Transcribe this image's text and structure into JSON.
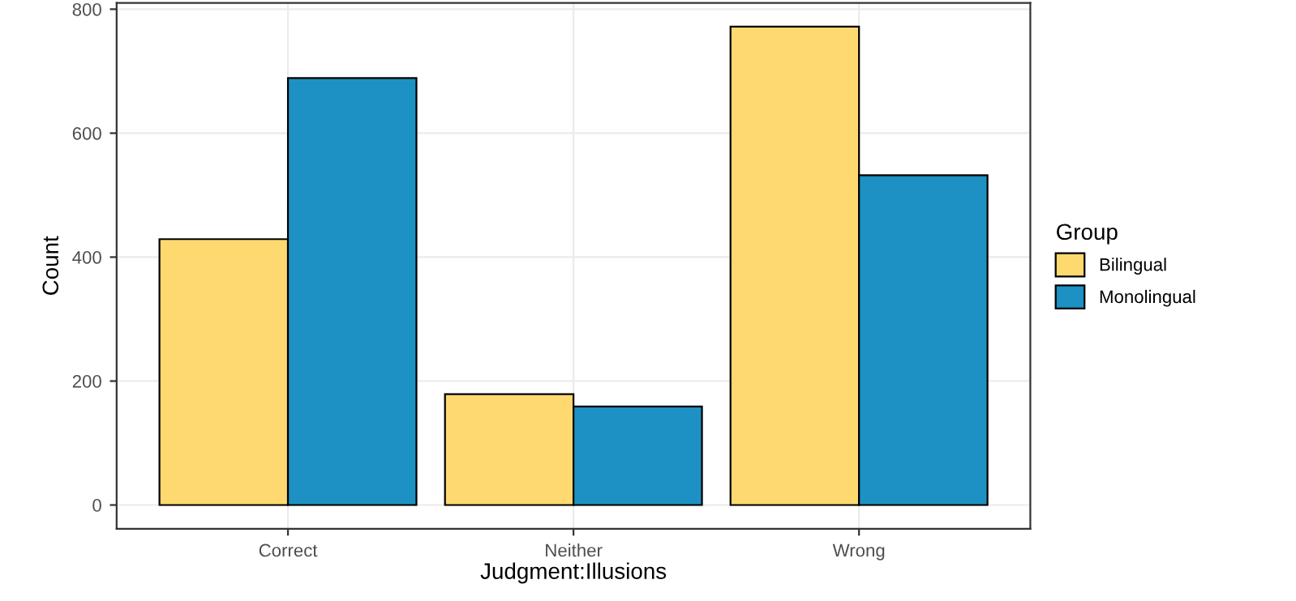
{
  "chart_data": {
    "type": "bar",
    "xlabel": "Judgment:Illusions",
    "ylabel": "Count",
    "legend_title": "Group",
    "categories": [
      "Correct",
      "Neither",
      "Wrong"
    ],
    "series": [
      {
        "name": "Bilingual",
        "color": "#fdd96f",
        "values": [
          429,
          179,
          772
        ]
      },
      {
        "name": "Monolingual",
        "color": "#1d91c3",
        "values": [
          689,
          159,
          532
        ]
      }
    ],
    "ylim": [
      -38.5,
      810
    ],
    "yticks": [
      0,
      200,
      400,
      600,
      800
    ],
    "grid": true,
    "legend": "right"
  }
}
